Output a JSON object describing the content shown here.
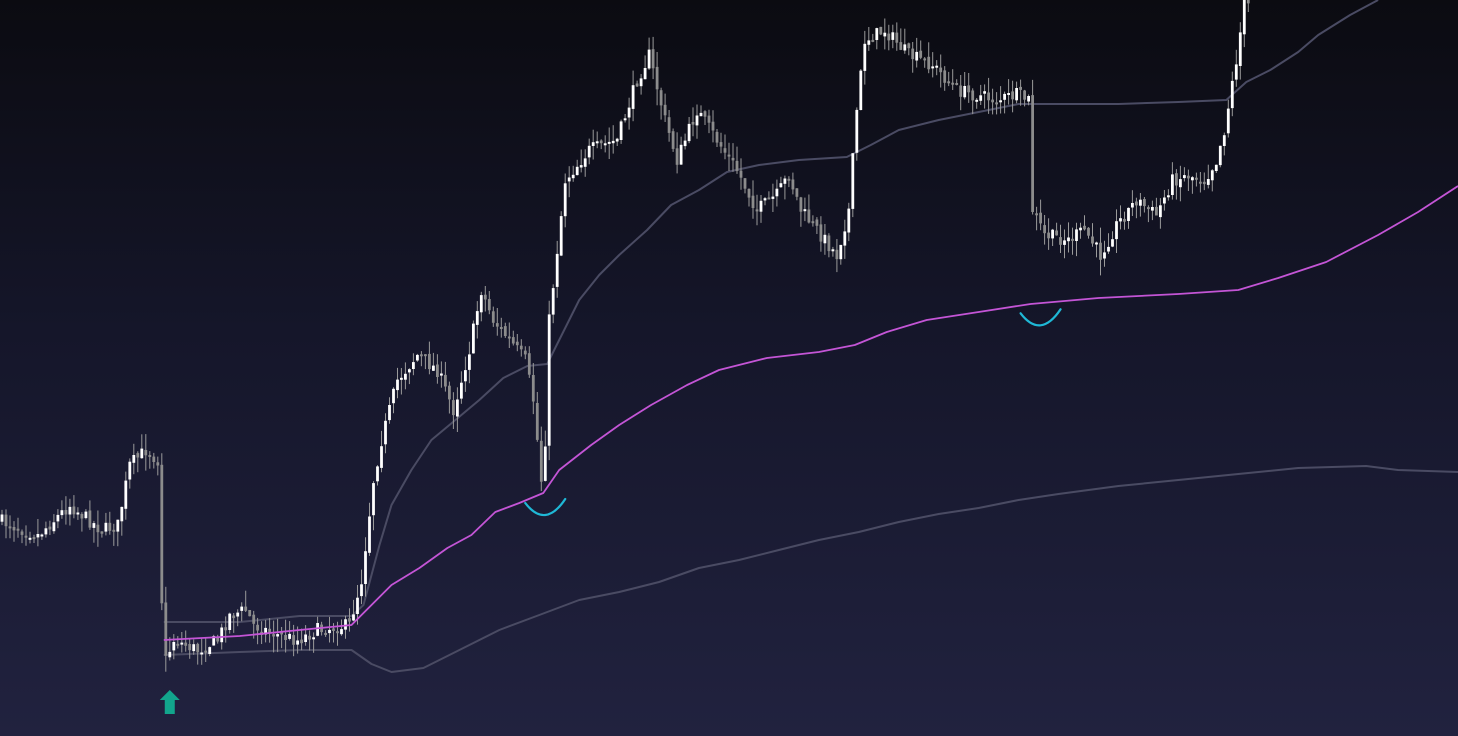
{
  "chart_data": {
    "type": "candlestick",
    "x": "bar index",
    "xlim": [
      0,
      365
    ],
    "ylim": [
      0,
      736
    ],
    "grid": false,
    "legend": "none",
    "colors": {
      "candle_up": "#ffffff",
      "candle_down": "#8c8c8c",
      "wick": "#9a9a9a",
      "vwap": "#c455d6",
      "bands": "#4a4b63",
      "signal_arrow": "#12a58c",
      "touch_marker": "#1fb8d6"
    },
    "price_anchors": [
      [
        0,
        520
      ],
      [
        10,
        535
      ],
      [
        18,
        505
      ],
      [
        26,
        530
      ],
      [
        30,
        525
      ],
      [
        33,
        465
      ],
      [
        37,
        450
      ],
      [
        40,
        460
      ],
      [
        41,
        600
      ],
      [
        42,
        660
      ],
      [
        44,
        640
      ],
      [
        50,
        650
      ],
      [
        55,
        640
      ],
      [
        58,
        615
      ],
      [
        62,
        610
      ],
      [
        64,
        625
      ],
      [
        70,
        635
      ],
      [
        75,
        640
      ],
      [
        80,
        630
      ],
      [
        88,
        625
      ],
      [
        91,
        580
      ],
      [
        94,
        480
      ],
      [
        96,
        440
      ],
      [
        100,
        380
      ],
      [
        105,
        355
      ],
      [
        110,
        370
      ],
      [
        114,
        410
      ],
      [
        118,
        350
      ],
      [
        121,
        290
      ],
      [
        124,
        320
      ],
      [
        128,
        340
      ],
      [
        132,
        360
      ],
      [
        134,
        400
      ],
      [
        136,
        480
      ],
      [
        137,
        440
      ],
      [
        138,
        320
      ],
      [
        140,
        250
      ],
      [
        142,
        180
      ],
      [
        148,
        150
      ],
      [
        155,
        140
      ],
      [
        160,
        80
      ],
      [
        163,
        55
      ],
      [
        167,
        120
      ],
      [
        170,
        160
      ],
      [
        175,
        110
      ],
      [
        180,
        140
      ],
      [
        185,
        170
      ],
      [
        190,
        210
      ],
      [
        195,
        195
      ],
      [
        198,
        175
      ],
      [
        201,
        210
      ],
      [
        205,
        230
      ],
      [
        210,
        255
      ],
      [
        213,
        210
      ],
      [
        215,
        110
      ],
      [
        217,
        40
      ],
      [
        222,
        30
      ],
      [
        228,
        55
      ],
      [
        234,
        65
      ],
      [
        240,
        90
      ],
      [
        245,
        95
      ],
      [
        250,
        100
      ],
      [
        255,
        95
      ],
      [
        258,
        100
      ],
      [
        259,
        210
      ],
      [
        262,
        235
      ],
      [
        268,
        240
      ],
      [
        272,
        230
      ],
      [
        276,
        255
      ],
      [
        280,
        225
      ],
      [
        285,
        200
      ],
      [
        290,
        215
      ],
      [
        294,
        180
      ],
      [
        298,
        175
      ],
      [
        302,
        180
      ],
      [
        305,
        160
      ],
      [
        307,
        130
      ],
      [
        310,
        60
      ],
      [
        312,
        5
      ]
    ],
    "series": [
      {
        "name": "",
        "type": "vwap",
        "values": [
          [
            41,
            640
          ],
          [
            60,
            636
          ],
          [
            75,
            630
          ],
          [
            88,
            625
          ],
          [
            93,
            605
          ],
          [
            98,
            585
          ],
          [
            105,
            568
          ],
          [
            112,
            548
          ],
          [
            118,
            535
          ],
          [
            124,
            512
          ],
          [
            130,
            503
          ],
          [
            136,
            493
          ],
          [
            140,
            470
          ],
          [
            148,
            445
          ],
          [
            155,
            425
          ],
          [
            163,
            405
          ],
          [
            172,
            385
          ],
          [
            180,
            370
          ],
          [
            192,
            358
          ],
          [
            205,
            352
          ],
          [
            214,
            345
          ],
          [
            222,
            332
          ],
          [
            232,
            320
          ],
          [
            245,
            312
          ],
          [
            258,
            304
          ],
          [
            275,
            298
          ],
          [
            295,
            294
          ],
          [
            310,
            290
          ],
          [
            320,
            278
          ],
          [
            332,
            262
          ],
          [
            345,
            235
          ],
          [
            355,
            212
          ],
          [
            365,
            186
          ]
        ]
      },
      {
        "name": "",
        "type": "upper_band",
        "values": [
          [
            41,
            622
          ],
          [
            60,
            622
          ],
          [
            75,
            616
          ],
          [
            88,
            616
          ],
          [
            91,
            605
          ],
          [
            95,
            545
          ],
          [
            98,
            505
          ],
          [
            103,
            470
          ],
          [
            108,
            440
          ],
          [
            114,
            420
          ],
          [
            120,
            400
          ],
          [
            126,
            378
          ],
          [
            132,
            366
          ],
          [
            137,
            364
          ],
          [
            140,
            340
          ],
          [
            145,
            300
          ],
          [
            150,
            275
          ],
          [
            155,
            255
          ],
          [
            162,
            230
          ],
          [
            168,
            205
          ],
          [
            175,
            190
          ],
          [
            182,
            172
          ],
          [
            190,
            165
          ],
          [
            200,
            160
          ],
          [
            212,
            157
          ],
          [
            218,
            145
          ],
          [
            225,
            130
          ],
          [
            235,
            120
          ],
          [
            245,
            112
          ],
          [
            255,
            104
          ],
          [
            265,
            104
          ],
          [
            280,
            104
          ],
          [
            295,
            102
          ],
          [
            307,
            100
          ],
          [
            312,
            82
          ],
          [
            318,
            70
          ],
          [
            325,
            52
          ],
          [
            330,
            35
          ],
          [
            338,
            15
          ],
          [
            345,
            0
          ]
        ]
      },
      {
        "name": "",
        "type": "lower_band",
        "values": [
          [
            41,
            655
          ],
          [
            60,
            652
          ],
          [
            75,
            650
          ],
          [
            88,
            650
          ],
          [
            93,
            664
          ],
          [
            98,
            672
          ],
          [
            106,
            668
          ],
          [
            115,
            650
          ],
          [
            125,
            630
          ],
          [
            135,
            615
          ],
          [
            145,
            600
          ],
          [
            155,
            592
          ],
          [
            165,
            582
          ],
          [
            175,
            568
          ],
          [
            185,
            560
          ],
          [
            195,
            550
          ],
          [
            205,
            540
          ],
          [
            215,
            532
          ],
          [
            225,
            522
          ],
          [
            235,
            514
          ],
          [
            245,
            508
          ],
          [
            255,
            500
          ],
          [
            265,
            494
          ],
          [
            280,
            486
          ],
          [
            295,
            480
          ],
          [
            310,
            474
          ],
          [
            325,
            468
          ],
          [
            342,
            466
          ],
          [
            350,
            470
          ],
          [
            365,
            472
          ]
        ]
      }
    ],
    "annotations": [
      {
        "type": "signal-arrow",
        "bar": 42
      },
      {
        "type": "touch-marker",
        "bar": 136
      },
      {
        "type": "touch-marker",
        "bar": 260
      }
    ]
  }
}
